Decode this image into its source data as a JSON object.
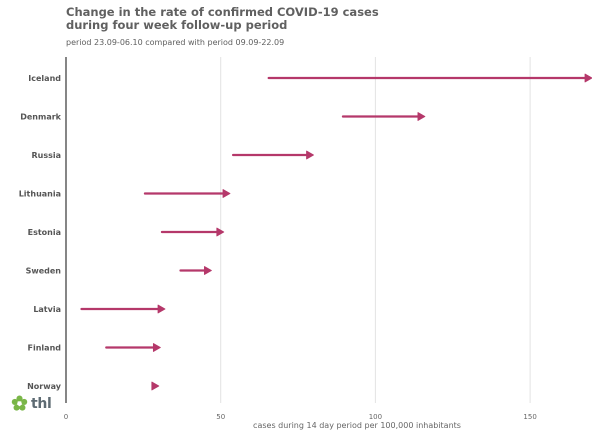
{
  "chart_data": {
    "type": "dumbbell-arrow",
    "title_lines": [
      "Change in the rate of confirmed COVID-19 cases",
      "during four week follow-up period"
    ],
    "subtitle": "period 23.09-06.10 compared with period 09.09-22.09",
    "xlabel": "cases during 14 day period per 100,000 inhabitants",
    "xlim": [
      0,
      170
    ],
    "xticks": [
      0,
      50,
      100,
      150
    ],
    "grid": true,
    "color": "#b5386a",
    "categories": [
      "Iceland",
      "Denmark",
      "Russia",
      "Lithuania",
      "Estonia",
      "Sweden",
      "Latvia",
      "Finland",
      "Norway"
    ],
    "from": [
      65.5,
      89.5,
      54,
      25.5,
      31,
      37,
      5,
      13,
      28
    ],
    "to": [
      170,
      116,
      80,
      53,
      51,
      47,
      32,
      30.5,
      30
    ]
  },
  "logo": {
    "text": "thl",
    "icon": "flower-icon",
    "color": "#7ab648"
  }
}
